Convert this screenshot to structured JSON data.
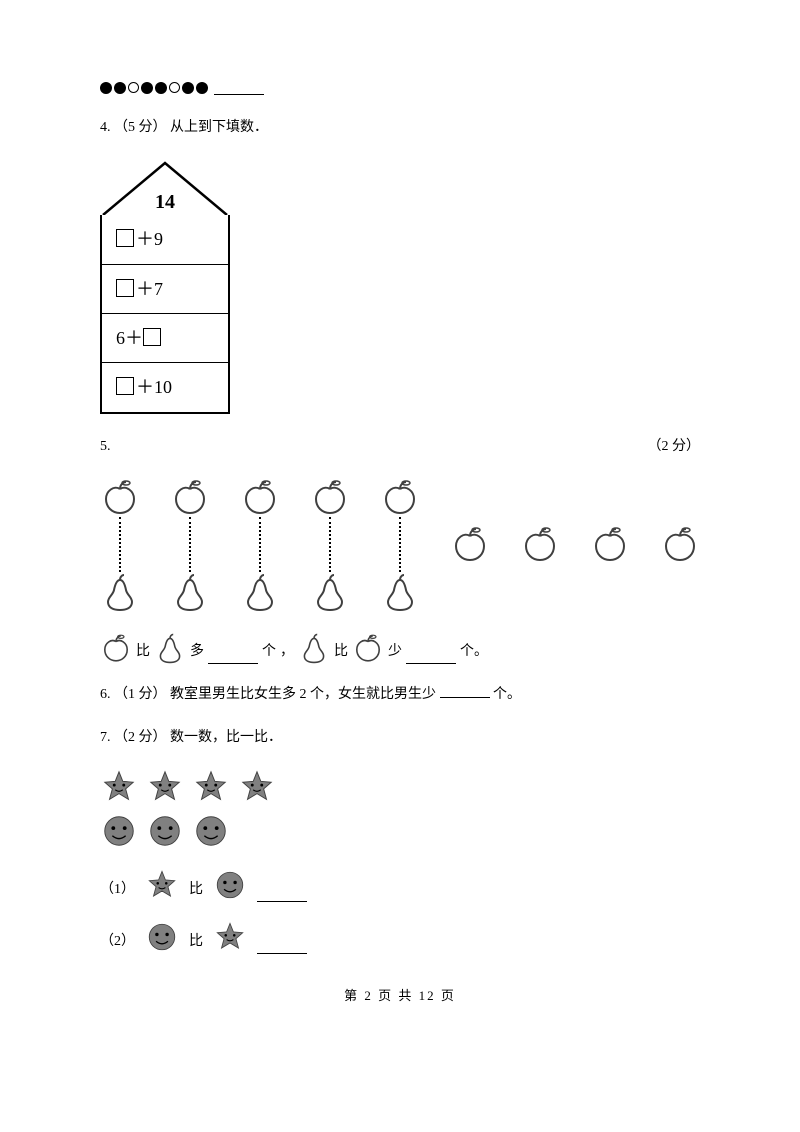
{
  "circles_pattern": [
    "f",
    "f",
    "e",
    "f",
    "f",
    "e",
    "f",
    "f"
  ],
  "q4": {
    "label": "4.",
    "points": "（5 分）",
    "text": "从上到下填数．",
    "roof": "14",
    "rows_plus": "＋",
    "row1_right": "9",
    "row2_right": "7",
    "row3_left": "6",
    "row4_right": "10"
  },
  "q5": {
    "label": "5.",
    "points": "（2 分）",
    "apples_count": 9,
    "pears_count": 5,
    "cmp_more_a": "比",
    "cmp_more_b": "多",
    "unit": "个",
    "sep": "，",
    "cmp_less_a": "比",
    "cmp_less_b": "少",
    "tail": "个。"
  },
  "q6": {
    "label": "6.",
    "points": "（1 分）",
    "text_a": "教室里男生比女生多 2 个，女生就比男生少",
    "text_b": "个。"
  },
  "q7": {
    "label": "7.",
    "points": "（2 分）",
    "text": "数一数，比一比．",
    "stars": 4,
    "faces": 3,
    "sub1": "（1）",
    "sub2": "（2）",
    "bi": "比"
  },
  "footer": {
    "a": "第",
    "page": "2",
    "b": "页 共",
    "total": "12",
    "c": "页"
  },
  "colors": {
    "text": "#000000",
    "bg": "#ffffff",
    "shape_fill": "#808080",
    "shape_stroke": "#404040"
  }
}
